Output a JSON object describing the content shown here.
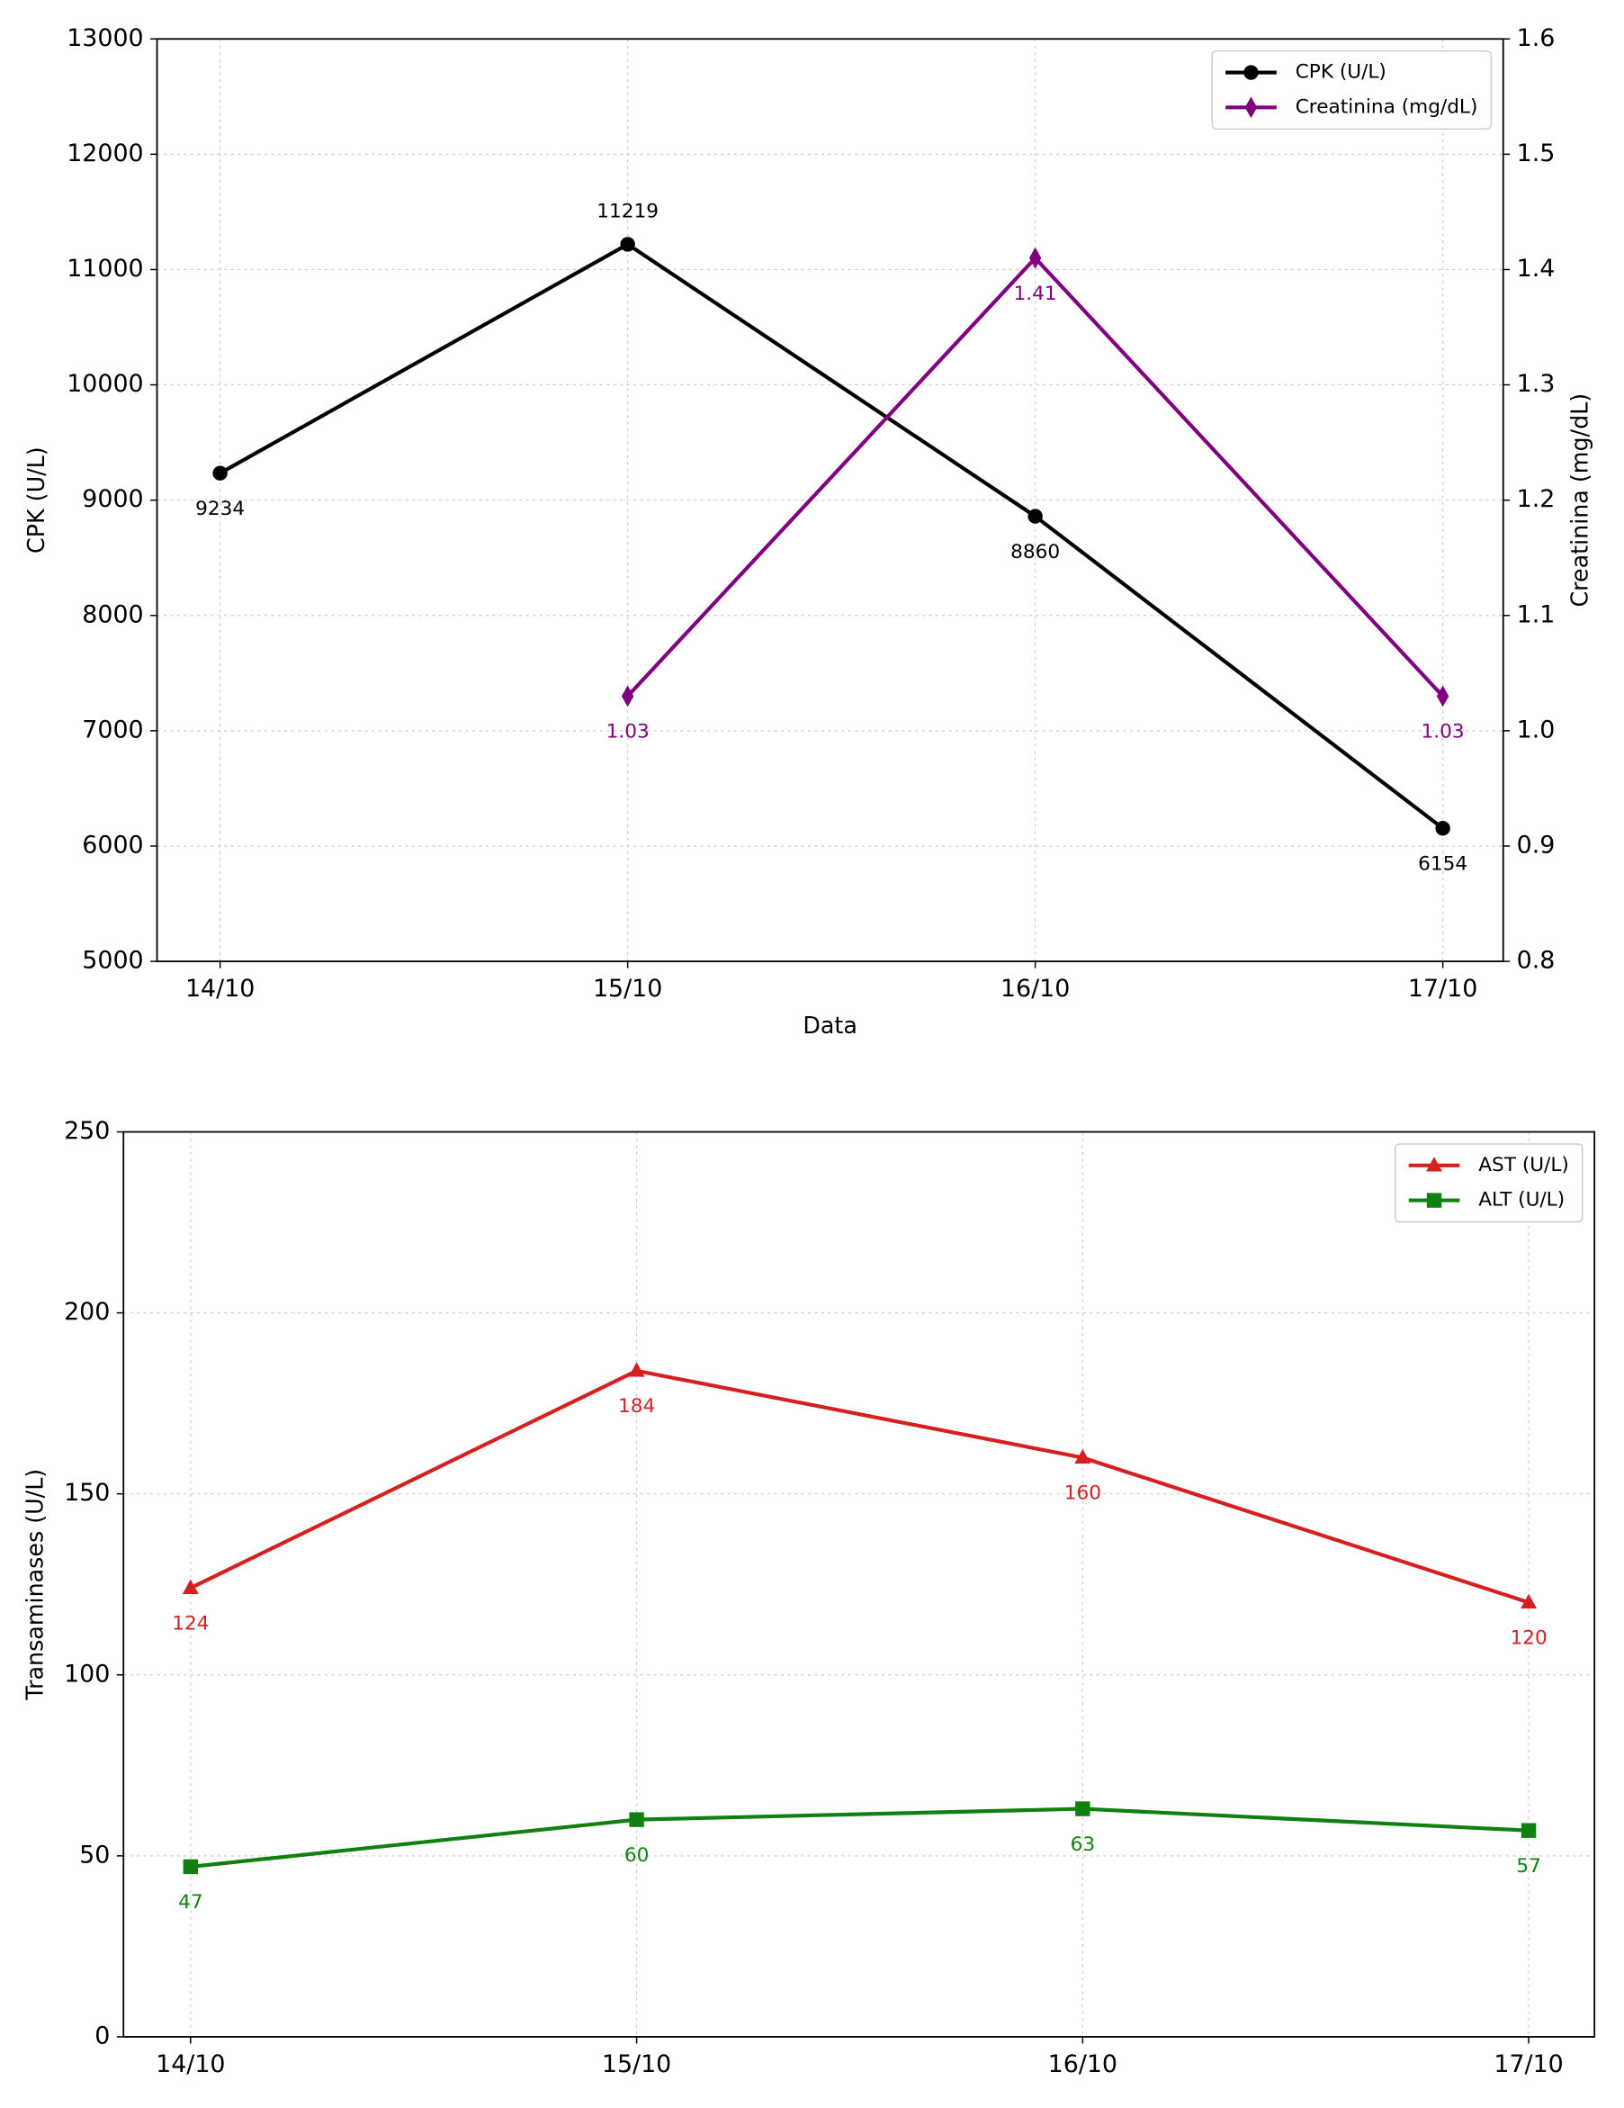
{
  "chart_data": [
    {
      "type": "line",
      "x_label": "Data",
      "y_label": "CPK (U/L)",
      "y2_label": "Creatinina (mg/dL)",
      "categories": [
        "14/10",
        "15/10",
        "16/10",
        "17/10"
      ],
      "series": [
        {
          "name": "CPK (U/L)",
          "color": "#000000",
          "marker": "o",
          "values": [
            9234,
            11219,
            8860,
            6154
          ]
        },
        {
          "name": "Creatinina (mg/dL)",
          "color": "#800080",
          "marker": "d",
          "axis": "y2",
          "values": [
            null,
            1.03,
            1.41,
            1.03
          ]
        }
      ],
      "ylim": [
        5000,
        13000
      ],
      "yticks": [
        5000,
        6000,
        7000,
        8000,
        9000,
        10000,
        11000,
        12000,
        13000
      ],
      "y2lim": [
        0.8,
        1.6
      ],
      "y2ticks": [
        0.8,
        0.9,
        {
          "value": 1,
          "label": "1.0"
        },
        1.1,
        1.2,
        1.3,
        1.4,
        1.5,
        1.6
      ],
      "grid": true,
      "legend": "upper right"
    },
    {
      "type": "line",
      "y_label": "Transaminases (U/L)",
      "categories": [
        "14/10",
        "15/10",
        "16/10",
        "17/10"
      ],
      "series": [
        {
          "name": "AST (U/L)",
          "color": "#d62020",
          "marker": "^",
          "values": [
            124,
            184,
            160,
            120
          ]
        },
        {
          "name": "ALT (U/L)",
          "color": "#108010",
          "marker": "s",
          "values": [
            47,
            60,
            63,
            57
          ]
        }
      ],
      "ylim": [
        0,
        250
      ],
      "yticks": [
        0,
        50,
        100,
        150,
        200,
        250
      ],
      "grid": true,
      "legend": "upper right"
    }
  ]
}
